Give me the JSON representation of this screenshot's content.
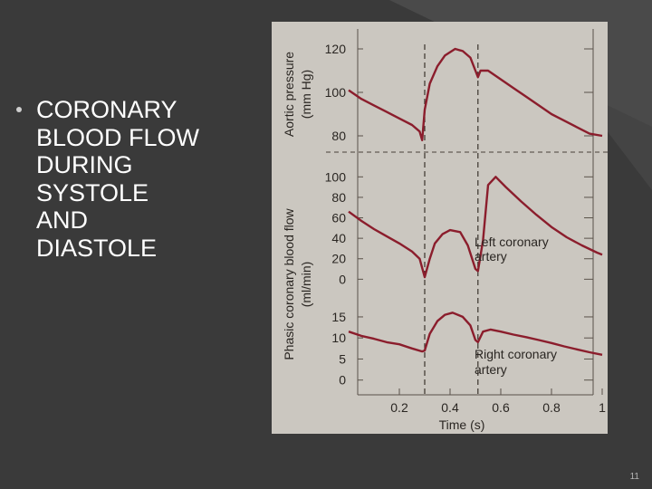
{
  "slide": {
    "title": "CORONARY\nBLOOD FLOW\nDURING\nSYSTOLE\nAND\nDIASTOLE",
    "page_number": "11",
    "background_color": "#3a3a3a",
    "title_color": "#ffffff"
  },
  "chart_data": [
    {
      "type": "line",
      "ylabel": "Aortic pressure (mm Hg)",
      "ylim": [
        70,
        125
      ],
      "yticks": [
        "120",
        "100",
        "80"
      ],
      "x_range": [
        0,
        1
      ],
      "series": [
        {
          "color": "#8b1d2c",
          "x": [
            0,
            0.05,
            0.1,
            0.15,
            0.2,
            0.25,
            0.28,
            0.29,
            0.3,
            0.32,
            0.35,
            0.38,
            0.42,
            0.45,
            0.48,
            0.5,
            0.51,
            0.52,
            0.55,
            0.6,
            0.65,
            0.7,
            0.75,
            0.8,
            0.85,
            0.9,
            0.95,
            1.0
          ],
          "y": [
            101,
            97,
            94,
            91,
            88,
            85,
            82,
            78,
            92,
            104,
            112,
            117,
            120,
            119,
            116,
            110,
            107,
            110,
            110,
            106,
            102,
            98,
            94,
            90,
            87,
            84,
            81,
            80
          ]
        }
      ]
    },
    {
      "type": "line",
      "ylabel": "Phasic coronary blood flow (ml/min)",
      "x_range": [
        0,
        1
      ],
      "xlabel": "Time (s)",
      "xticks": [
        "0.2",
        "0.4",
        "0.6",
        "0.8",
        "1"
      ],
      "panels": [
        {
          "ylim": [
            -5,
            110
          ],
          "yticks": [
            "100",
            "80",
            "60",
            "40",
            "20",
            "0"
          ],
          "series": [
            {
              "name": "Left coronary artery",
              "color": "#8b1d2c",
              "x": [
                0,
                0.05,
                0.1,
                0.15,
                0.2,
                0.25,
                0.28,
                0.3,
                0.32,
                0.34,
                0.37,
                0.4,
                0.44,
                0.47,
                0.5,
                0.51,
                0.53,
                0.55,
                0.58,
                0.62,
                0.68,
                0.74,
                0.8,
                0.86,
                0.92,
                0.98,
                1.0
              ],
              "y": [
                66,
                57,
                49,
                42,
                35,
                27,
                20,
                2,
                20,
                35,
                44,
                48,
                46,
                33,
                10,
                8,
                38,
                92,
                100,
                90,
                76,
                63,
                51,
                41,
                33,
                26,
                24
              ]
            }
          ]
        },
        {
          "ylim": [
            -2,
            18
          ],
          "yticks": [
            "15",
            "10",
            "5",
            "0"
          ],
          "series": [
            {
              "name": "Right coronary artery",
              "color": "#8b1d2c",
              "x": [
                0,
                0.05,
                0.1,
                0.15,
                0.2,
                0.25,
                0.29,
                0.3,
                0.32,
                0.35,
                0.38,
                0.41,
                0.45,
                0.48,
                0.5,
                0.51,
                0.53,
                0.56,
                0.6,
                0.65,
                0.7,
                0.75,
                0.8,
                0.85,
                0.9,
                0.95,
                1.0
              ],
              "y": [
                11.5,
                10.5,
                9.8,
                9,
                8.5,
                7.5,
                6.8,
                7,
                11,
                14,
                15.5,
                16,
                15,
                13,
                9.5,
                9,
                11.5,
                12,
                11.5,
                10.8,
                10.2,
                9.5,
                8.8,
                8,
                7.3,
                6.6,
                6
              ]
            }
          ]
        }
      ],
      "markers": [
        0.3,
        0.51
      ]
    }
  ]
}
